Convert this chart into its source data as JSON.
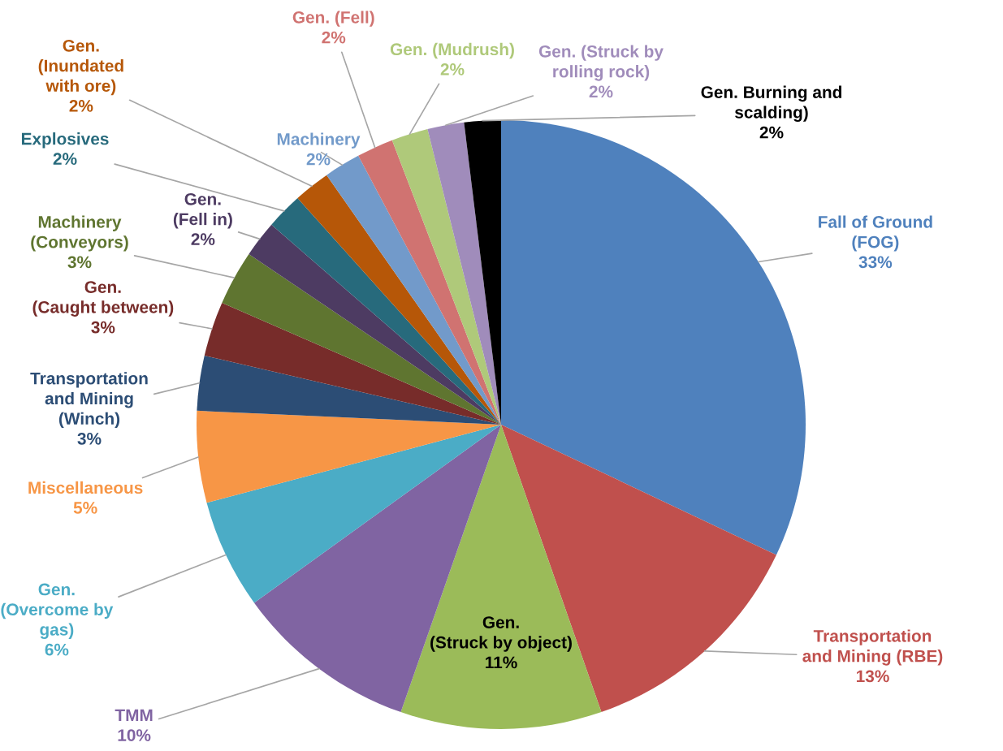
{
  "chart_data": {
    "type": "pie",
    "categories": [
      "Fall of Ground\n(FOG)",
      "Transportation\nand Mining (RBE)",
      "Gen.\n(Struck by object)",
      "TMM",
      "Gen.\n(Overcome by\ngas)",
      "Miscellaneous",
      "Transportation\nand Mining\n(Winch)",
      "Gen.\n(Caught between)",
      "Machinery\n(Conveyors)",
      "Gen.\n(Fell in)",
      "Explosives",
      "Gen.\n(Inundated\nwith ore)",
      "Machinery",
      "Gen. (Fell)",
      "Gen. (Mudrush)",
      "Gen. (Struck by\nrolling rock)",
      "Gen. Burning and\nscalding)"
    ],
    "values": [
      33,
      13,
      11,
      10,
      6,
      5,
      3,
      3,
      3,
      2,
      2,
      2,
      2,
      2,
      2,
      2,
      2
    ],
    "value_labels": [
      "33%",
      "13%",
      "11%",
      "10%",
      "6%",
      "5%",
      "3%",
      "3%",
      "3%",
      "2%",
      "2%",
      "2%",
      "2%",
      "2%",
      "2%",
      "2%",
      "2%"
    ],
    "colors": [
      "#4f81bd",
      "#c0504d",
      "#9bbb59",
      "#8064a2",
      "#4bacc6",
      "#f79646",
      "#2c4d75",
      "#772c2a",
      "#5f7530",
      "#4d3b62",
      "#276a7c",
      "#b65708",
      "#729aca",
      "#d07371",
      "#afc97a",
      "#a08cbb",
      "#000000"
    ],
    "legend": false
  }
}
